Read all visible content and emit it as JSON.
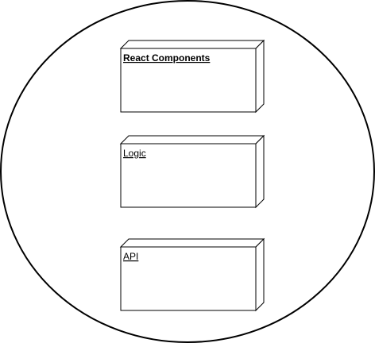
{
  "diagram": {
    "container": {
      "shape": "ellipse"
    },
    "nodes": [
      {
        "id": "react-components",
        "label": "React Components",
        "bold": true
      },
      {
        "id": "logic",
        "label": "Logic",
        "bold": false
      },
      {
        "id": "api",
        "label": "API",
        "bold": false
      }
    ],
    "colors": {
      "stroke": "#000000",
      "fill": "#ffffff",
      "text": "#000000"
    }
  }
}
